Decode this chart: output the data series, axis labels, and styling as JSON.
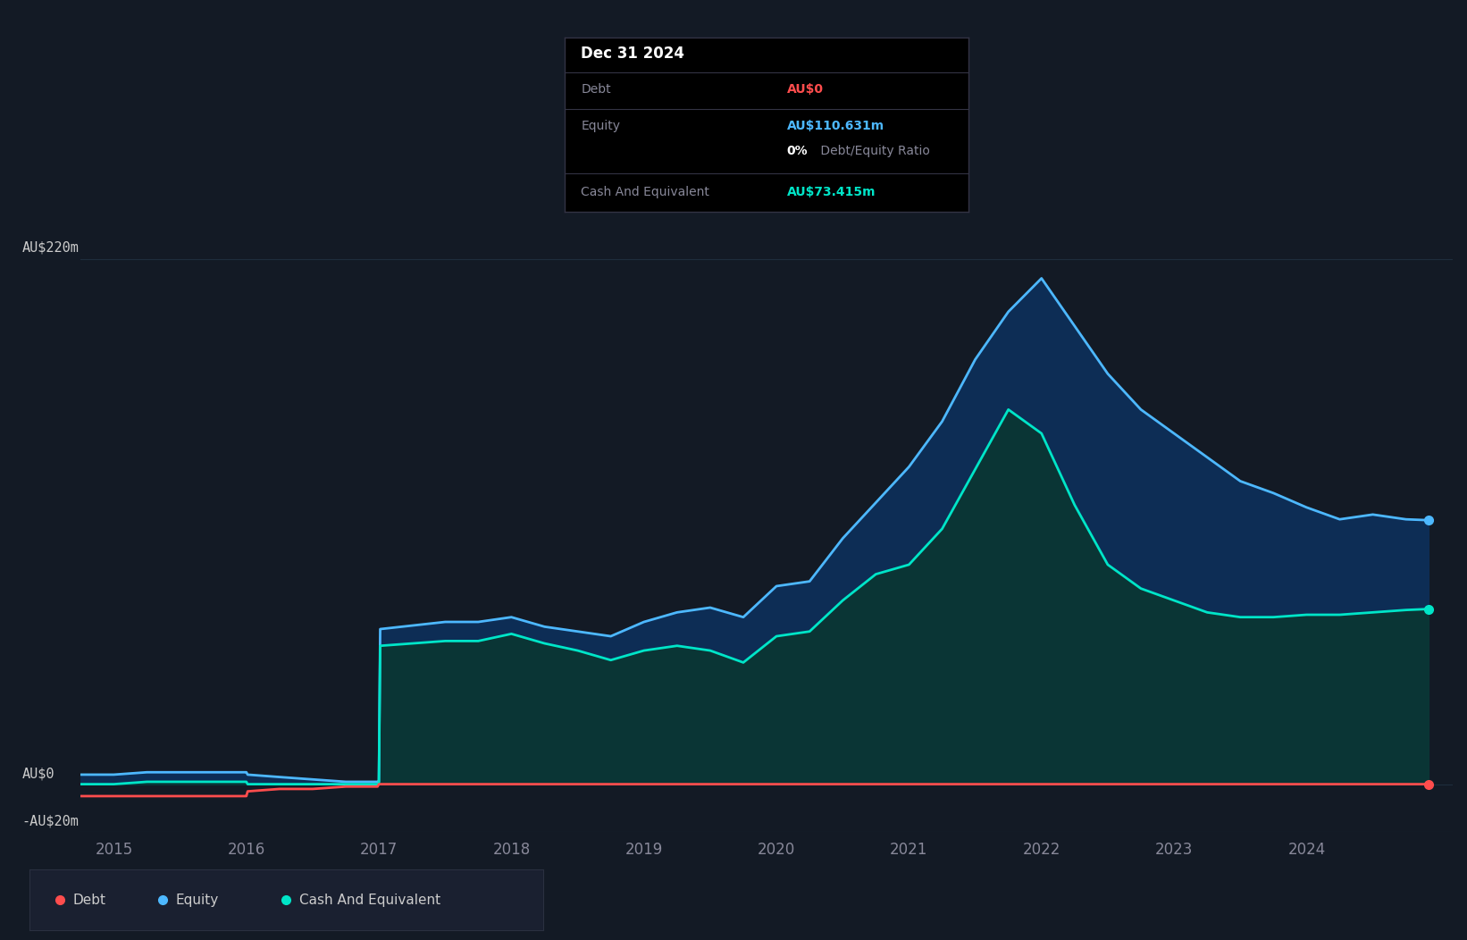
{
  "bg_color": "#131a25",
  "plot_bg_color": "#131a25",
  "grid_color": "#1e2d3d",
  "ylabel_text": "AU$220m",
  "ylabel2_text": "AU$0",
  "ylabel3_text": "-AU$20m",
  "tooltip": {
    "date": "Dec 31 2024",
    "debt_label": "Debt",
    "debt_value": "AU$0",
    "debt_color": "#ff4d4d",
    "equity_label": "Equity",
    "equity_value": "AU$110.631m",
    "equity_color": "#4db8ff",
    "ratio_bold": "0%",
    "ratio_rest": " Debt/Equity Ratio",
    "cash_label": "Cash And Equivalent",
    "cash_value": "AU$73.415m",
    "cash_color": "#00e5c8"
  },
  "legend": [
    {
      "label": "Debt",
      "color": "#ff4d4d"
    },
    {
      "label": "Equity",
      "color": "#4db8ff"
    },
    {
      "label": "Cash And Equivalent",
      "color": "#00e5c8"
    }
  ],
  "years_ticks": [
    2015,
    2016,
    2017,
    2018,
    2019,
    2020,
    2021,
    2022,
    2023,
    2024
  ],
  "ylim": [
    -20,
    240
  ],
  "equity_color": "#4db8ff",
  "equity_fill": "#0d2d55",
  "cash_color": "#00e5c8",
  "cash_fill": "#0a3535",
  "debt_color": "#ff4d4d",
  "time": [
    2014.75,
    2015.0,
    2015.25,
    2015.5,
    2015.75,
    2015.99,
    2016.0,
    2016.01,
    2016.25,
    2016.5,
    2016.75,
    2016.99,
    2017.0,
    2017.01,
    2017.5,
    2017.75,
    2018.0,
    2018.25,
    2018.5,
    2018.75,
    2019.0,
    2019.25,
    2019.5,
    2019.75,
    2020.0,
    2020.25,
    2020.5,
    2020.75,
    2021.0,
    2021.25,
    2021.5,
    2021.75,
    2022.0,
    2022.25,
    2022.5,
    2022.75,
    2023.0,
    2023.25,
    2023.5,
    2023.75,
    2024.0,
    2024.25,
    2024.5,
    2024.75,
    2024.92
  ],
  "equity": [
    4,
    4,
    5,
    5,
    5,
    5,
    5,
    4,
    3,
    2,
    1,
    1,
    1,
    65,
    68,
    68,
    70,
    66,
    64,
    62,
    68,
    72,
    74,
    70,
    83,
    85,
    103,
    118,
    133,
    152,
    178,
    198,
    212,
    192,
    172,
    157,
    147,
    137,
    127,
    122,
    116,
    111,
    113,
    111,
    110.631
  ],
  "cash": [
    0,
    0,
    1,
    1,
    1,
    1,
    1,
    0,
    0,
    0,
    0,
    0,
    0,
    58,
    60,
    60,
    63,
    59,
    56,
    52,
    56,
    58,
    56,
    51,
    62,
    64,
    77,
    88,
    92,
    107,
    132,
    157,
    147,
    117,
    92,
    82,
    77,
    72,
    70,
    70,
    71,
    71,
    72,
    73,
    73.415
  ],
  "debt": [
    -5,
    -5,
    -5,
    -5,
    -5,
    -5,
    -5,
    -3,
    -2,
    -2,
    -1,
    -1,
    0,
    0,
    0,
    0,
    0,
    0,
    0,
    0,
    0,
    0,
    0,
    0,
    0,
    0,
    0,
    0,
    0,
    0,
    0,
    0,
    0,
    0,
    0,
    0,
    0,
    0,
    0,
    0,
    0,
    0,
    0,
    0,
    0
  ],
  "xlim": [
    2014.75,
    2025.1
  ]
}
